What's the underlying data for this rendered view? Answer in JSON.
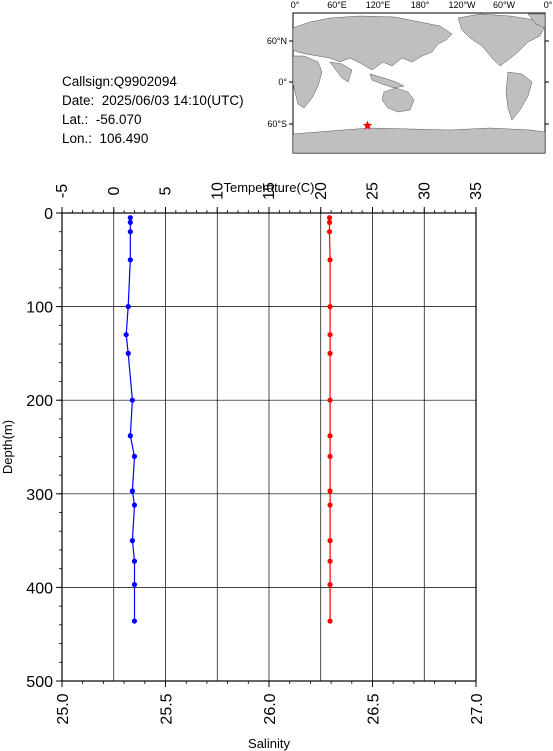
{
  "info": {
    "callsign": "Callsign:Q9902094",
    "date": "Date:  2025/06/03 14:10(UTC)",
    "lat": "Lat.:  -56.070",
    "lon": "Lon.:  106.490"
  },
  "map": {
    "top_labels": [
      "0°",
      "60°E",
      "120°E",
      "180°",
      "120°W",
      "60°W",
      "0°"
    ],
    "lat_labels": [
      "60°N",
      "0°",
      "60°S"
    ],
    "land_color": "#bfbfbf",
    "ocean_color": "#ffffff",
    "marker_color": "#ff0000",
    "marker": {
      "lon": 106.49,
      "lat": -56.07
    }
  },
  "chart_data": {
    "type": "line",
    "xlabel_top": "Temperature(C)",
    "xlabel_bottom": "Salinity",
    "ylabel": "Depth(m)",
    "temperature_range": [
      -5,
      35
    ],
    "temperature_ticks": [
      "-5",
      "0",
      "5",
      "10",
      "15",
      "20",
      "25",
      "30",
      "35"
    ],
    "salinity_range": [
      25.0,
      27.0
    ],
    "salinity_ticks": [
      "25.0",
      "25.5",
      "26.0",
      "26.5",
      "27.0"
    ],
    "depth_range": [
      0,
      500
    ],
    "depth_ticks": [
      "0",
      "100",
      "200",
      "300",
      "400",
      "500"
    ],
    "grid": true,
    "temperature_color": "#ff0000",
    "salinity_color": "#0000ff",
    "series": [
      {
        "name": "",
        "axis": "temperature",
        "depth": [
          5,
          10,
          20,
          50,
          100,
          130,
          150,
          200,
          238,
          260,
          297,
          312,
          350,
          372,
          397,
          436
        ],
        "values": [
          20.85,
          20.85,
          20.85,
          20.9,
          20.9,
          20.9,
          20.9,
          20.9,
          20.9,
          20.9,
          20.9,
          20.9,
          20.9,
          20.9,
          20.9,
          20.9
        ]
      },
      {
        "name": "",
        "axis": "salinity",
        "depth": [
          5,
          10,
          20,
          50,
          100,
          130,
          150,
          200,
          238,
          260,
          297,
          312,
          350,
          372,
          397,
          436
        ],
        "values": [
          25.33,
          25.33,
          25.33,
          25.33,
          25.32,
          25.31,
          25.32,
          25.34,
          25.33,
          25.35,
          25.34,
          25.35,
          25.34,
          25.35,
          25.35,
          25.35
        ]
      }
    ]
  }
}
